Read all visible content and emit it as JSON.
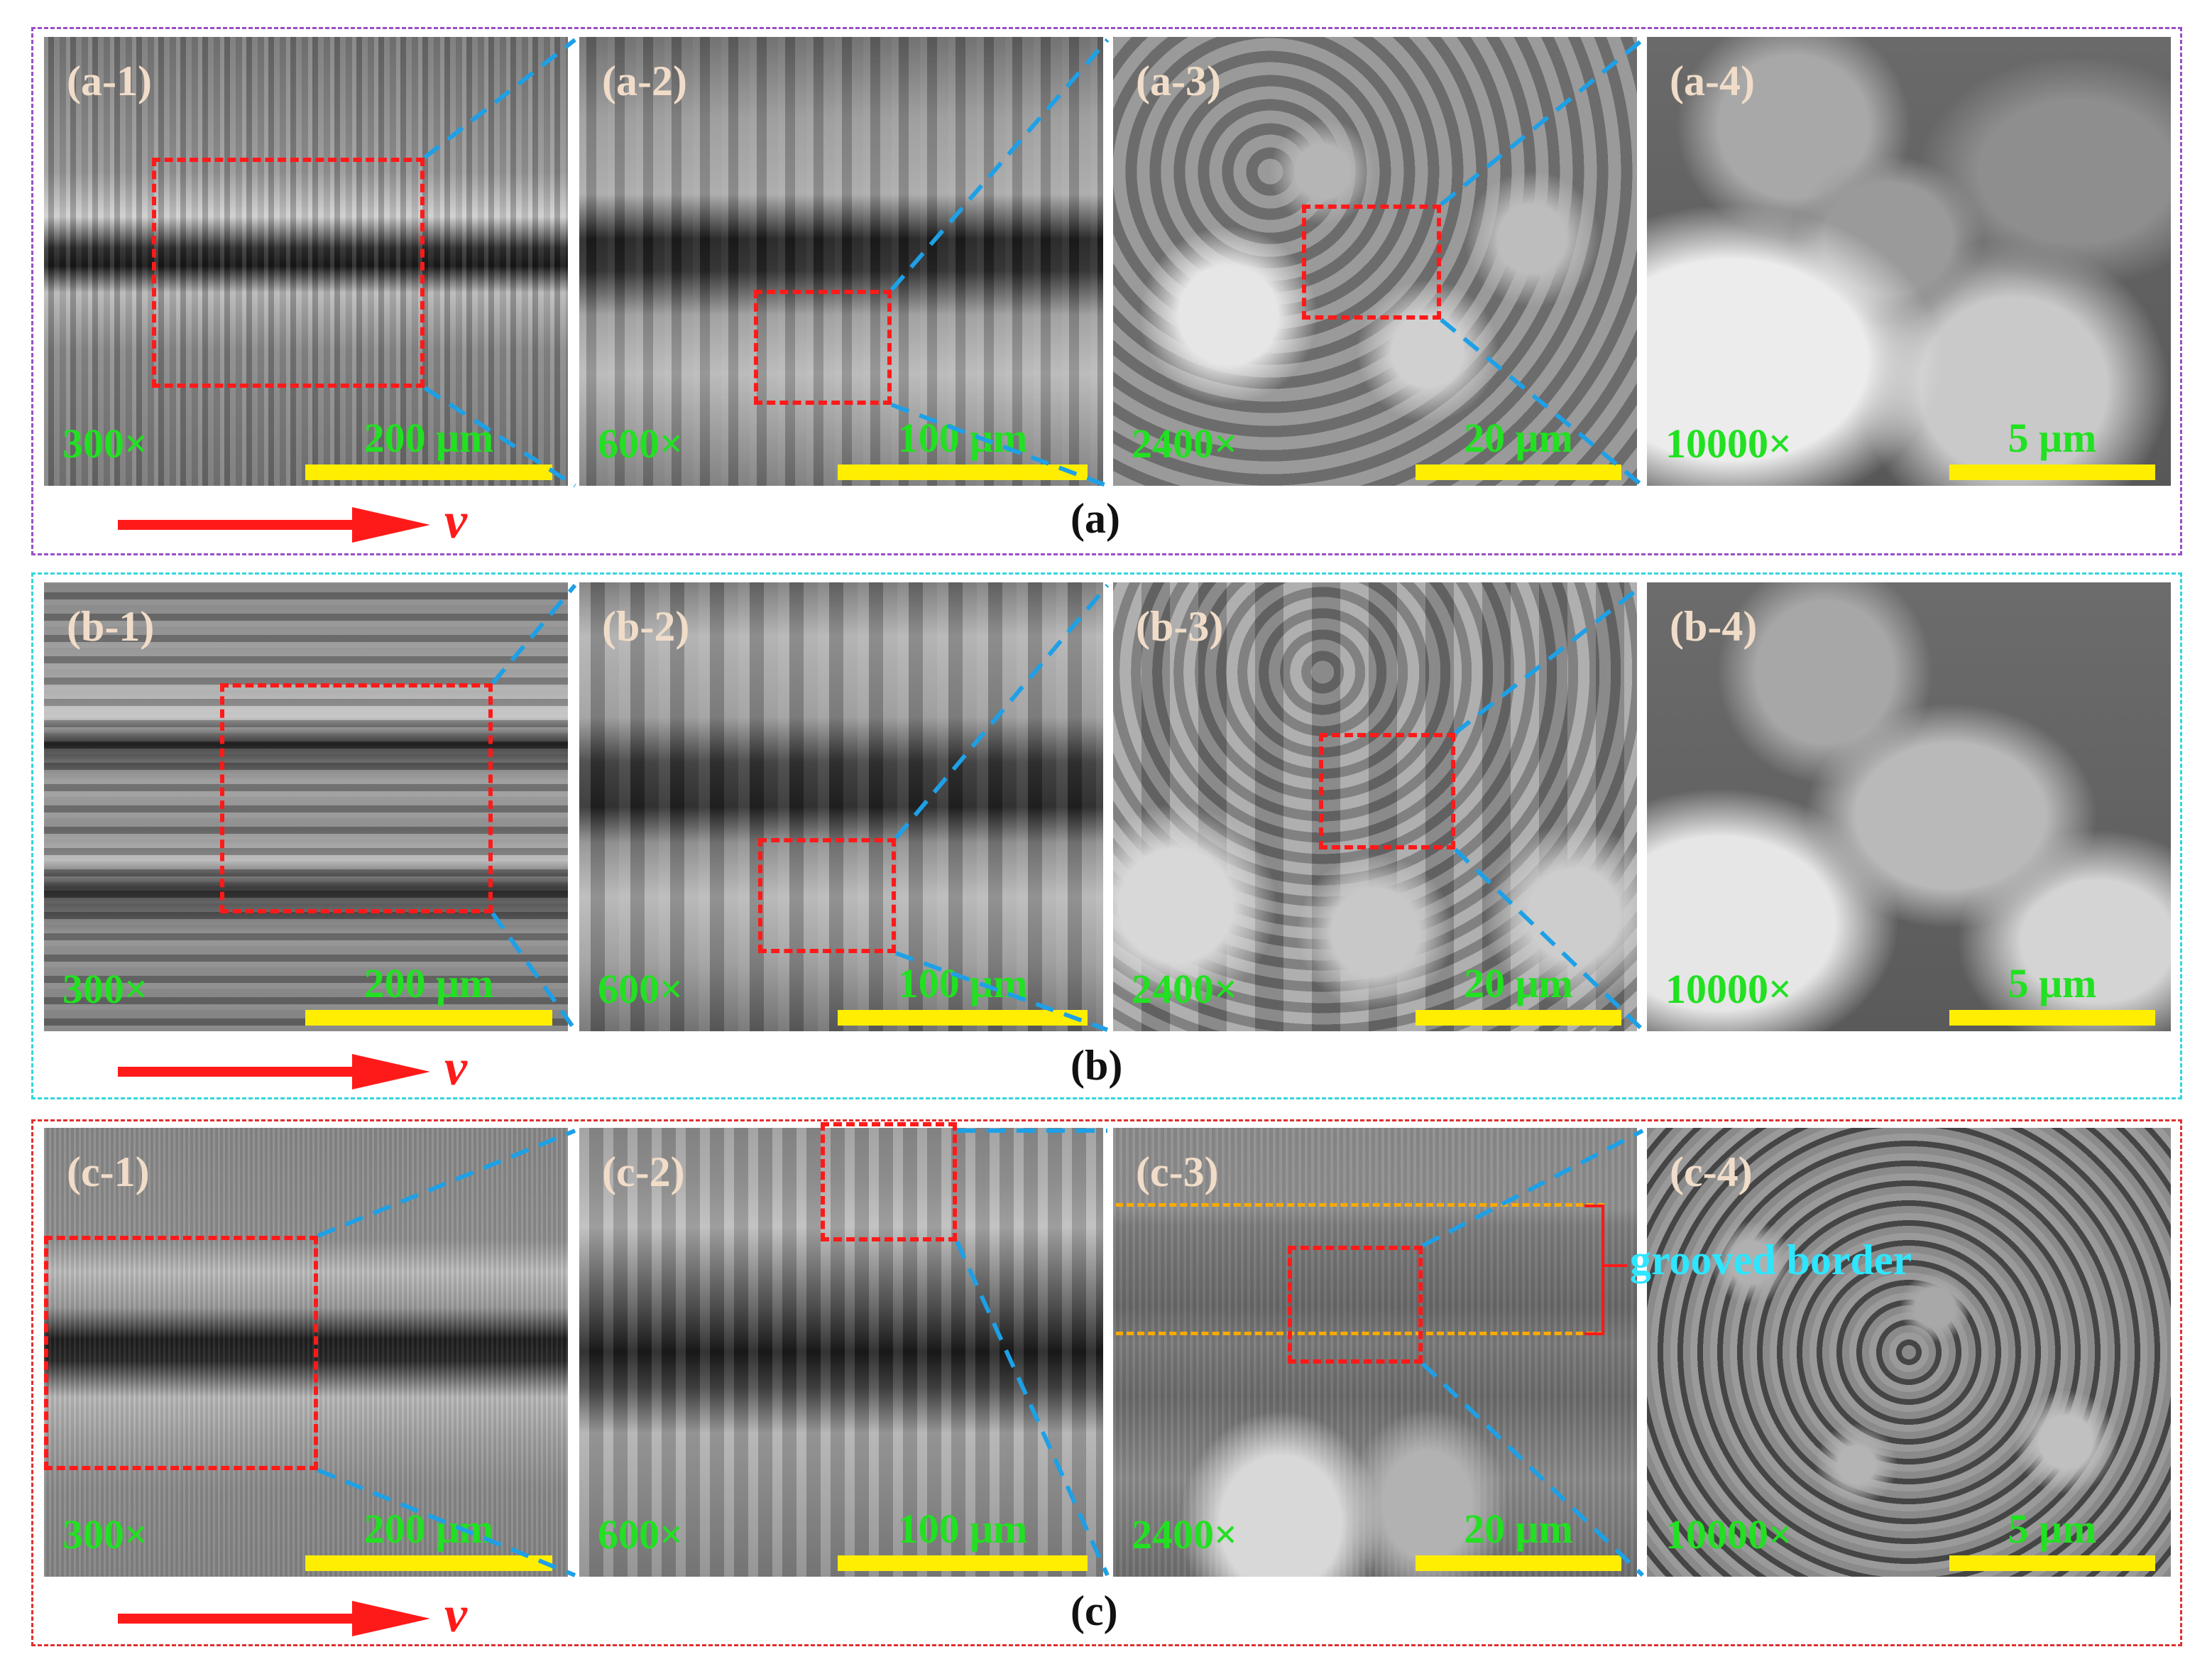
{
  "groups": [
    {
      "label": "(a)",
      "frame_color": "#9a4fc4",
      "velocity_symbol": "v",
      "panels": [
        {
          "id": "(a-1)",
          "magnification": "300×",
          "scale": "200 μm"
        },
        {
          "id": "(a-2)",
          "magnification": "600×",
          "scale": "100 μm"
        },
        {
          "id": "(a-3)",
          "magnification": "2400×",
          "scale": "20 μm"
        },
        {
          "id": "(a-4)",
          "magnification": "10000×",
          "scale": "5 μm"
        }
      ]
    },
    {
      "label": "(b)",
      "frame_color": "#33d6dd",
      "velocity_symbol": "v",
      "panels": [
        {
          "id": "(b-1)",
          "magnification": "300×",
          "scale": "200 μm"
        },
        {
          "id": "(b-2)",
          "magnification": "600×",
          "scale": "100 μm"
        },
        {
          "id": "(b-3)",
          "magnification": "2400×",
          "scale": "20 μm"
        },
        {
          "id": "(b-4)",
          "magnification": "10000×",
          "scale": "5 μm"
        }
      ]
    },
    {
      "label": "(c)",
      "frame_color": "#e03030",
      "velocity_symbol": "v",
      "panels": [
        {
          "id": "(c-1)",
          "magnification": "300×",
          "scale": "200 μm"
        },
        {
          "id": "(c-2)",
          "magnification": "600×",
          "scale": "100 μm"
        },
        {
          "id": "(c-3)",
          "magnification": "2400×",
          "scale": "20 μm"
        },
        {
          "id": "(c-4)",
          "magnification": "10000×",
          "scale": "5 μm"
        }
      ]
    }
  ],
  "annotation": {
    "grooved_border": "grooved border"
  },
  "colors": {
    "roi_box": "#ff1a1a",
    "zoom_line": "#1ea0e6",
    "scale_bar": "#ffee00",
    "magnification_text": "#22e022",
    "panel_id_text": "#f0dcc8",
    "arrow": "#ff1a1a",
    "grooved_band": "#ffaa00",
    "grooved_label": "#2ee6ff"
  }
}
